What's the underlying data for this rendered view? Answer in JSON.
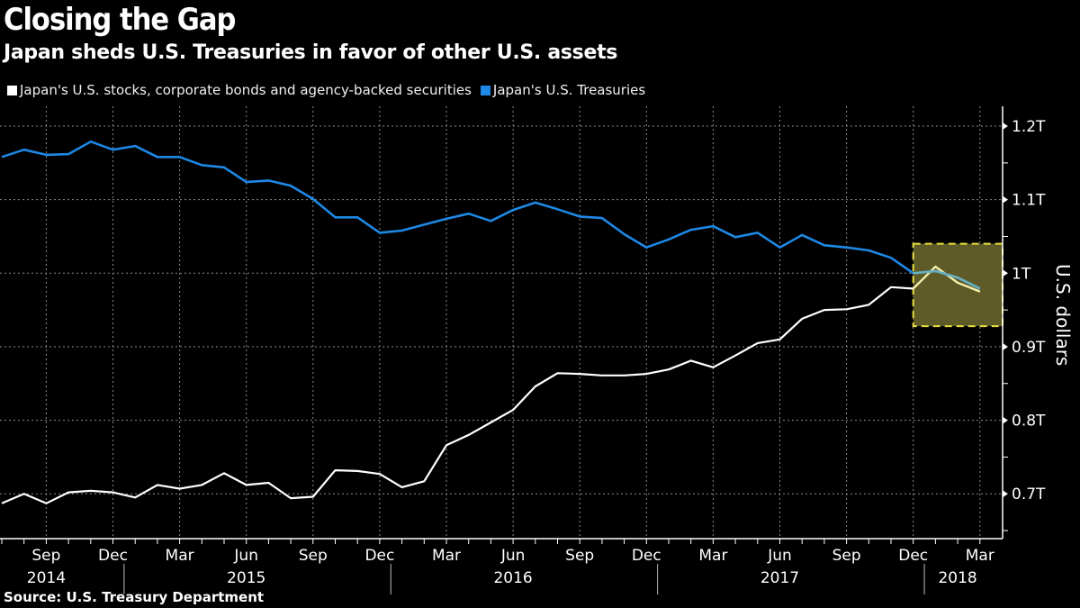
{
  "title": "Closing the Gap",
  "subtitle": "Japan sheds U.S. Treasuries in favor of other U.S. assets",
  "source": "Source: U.S. Treasury Department",
  "chart_data": {
    "type": "line",
    "title": "Closing the Gap",
    "subtitle": "Japan sheds U.S. Treasuries in favor of other U.S. assets",
    "xlabel": "",
    "ylabel": "U.S. dollars",
    "ylim": [
      0.639,
      1.227
    ],
    "yunit": "trillions USD",
    "yticks": [
      {
        "value": 1.2,
        "label": "1.2T"
      },
      {
        "value": 1.1,
        "label": "1.1T"
      },
      {
        "value": 1.0,
        "label": "1T"
      },
      {
        "value": 0.9,
        "label": "0.9T"
      },
      {
        "value": 0.8,
        "label": "0.8T"
      },
      {
        "value": 0.7,
        "label": "0.7T"
      }
    ],
    "grid": true,
    "legend_position": "top-left",
    "x": [
      "2014-07",
      "2014-08",
      "2014-09",
      "2014-10",
      "2014-11",
      "2014-12",
      "2015-01",
      "2015-02",
      "2015-03",
      "2015-04",
      "2015-05",
      "2015-06",
      "2015-07",
      "2015-08",
      "2015-09",
      "2015-10",
      "2015-11",
      "2015-12",
      "2016-01",
      "2016-02",
      "2016-03",
      "2016-04",
      "2016-05",
      "2016-06",
      "2016-07",
      "2016-08",
      "2016-09",
      "2016-10",
      "2016-11",
      "2016-12",
      "2017-01",
      "2017-02",
      "2017-03",
      "2017-04",
      "2017-05",
      "2017-06",
      "2017-07",
      "2017-08",
      "2017-09",
      "2017-10",
      "2017-11",
      "2017-12",
      "2018-01",
      "2018-02",
      "2018-03"
    ],
    "xticks": [
      {
        "month_index": 2,
        "label": "Sep"
      },
      {
        "month_index": 5,
        "label": "Dec"
      },
      {
        "month_index": 8,
        "label": "Mar"
      },
      {
        "month_index": 11,
        "label": "Jun"
      },
      {
        "month_index": 14,
        "label": "Sep"
      },
      {
        "month_index": 17,
        "label": "Dec"
      },
      {
        "month_index": 20,
        "label": "Mar"
      },
      {
        "month_index": 23,
        "label": "Jun"
      },
      {
        "month_index": 26,
        "label": "Sep"
      },
      {
        "month_index": 29,
        "label": "Dec"
      },
      {
        "month_index": 32,
        "label": "Mar"
      },
      {
        "month_index": 35,
        "label": "Jun"
      },
      {
        "month_index": 38,
        "label": "Sep"
      },
      {
        "month_index": 41,
        "label": "Dec"
      },
      {
        "month_index": 44,
        "label": "Mar"
      }
    ],
    "year_labels": [
      {
        "label": "2014",
        "center_index": 2
      },
      {
        "label": "2015",
        "center_index": 11
      },
      {
        "label": "2016",
        "center_index": 23
      },
      {
        "label": "2017",
        "center_index": 35
      },
      {
        "label": "2018",
        "center_index": 43
      }
    ],
    "year_dividers": [
      5.5,
      17.5,
      29.5,
      41.5
    ],
    "series": [
      {
        "name": "Japan's U.S. stocks, corporate bonds and agency-backed securities",
        "color": "#ffffff",
        "values": [
          0.687,
          0.7,
          0.687,
          0.702,
          0.704,
          0.702,
          0.695,
          0.712,
          0.707,
          0.712,
          0.728,
          0.712,
          0.715,
          0.694,
          0.696,
          0.732,
          0.731,
          0.727,
          0.709,
          0.717,
          0.766,
          0.78,
          0.797,
          0.814,
          0.846,
          0.864,
          0.863,
          0.861,
          0.861,
          0.863,
          0.869,
          0.881,
          0.872,
          0.888,
          0.905,
          0.91,
          0.938,
          0.95,
          0.951,
          0.957,
          0.981,
          0.979,
          1.009,
          0.987,
          0.975
        ]
      },
      {
        "name": "Japan's U.S. Treasuries",
        "color": "#1e88e5",
        "values": [
          1.158,
          1.168,
          1.161,
          1.162,
          1.179,
          1.168,
          1.173,
          1.158,
          1.158,
          1.147,
          1.144,
          1.124,
          1.126,
          1.119,
          1.101,
          1.076,
          1.076,
          1.055,
          1.058,
          1.066,
          1.074,
          1.081,
          1.071,
          1.086,
          1.096,
          1.087,
          1.077,
          1.075,
          1.053,
          1.035,
          1.046,
          1.059,
          1.064,
          1.049,
          1.055,
          1.035,
          1.052,
          1.038,
          1.035,
          1.031,
          1.021,
          1.0,
          1.003,
          0.994,
          0.979
        ]
      }
    ],
    "annotations": [
      {
        "type": "highlight-box",
        "x_start_index": 41,
        "x_end": "right-edge",
        "y_range": [
          0.928,
          1.04
        ],
        "fill": "#63602a",
        "border": "#e8e040"
      }
    ]
  }
}
